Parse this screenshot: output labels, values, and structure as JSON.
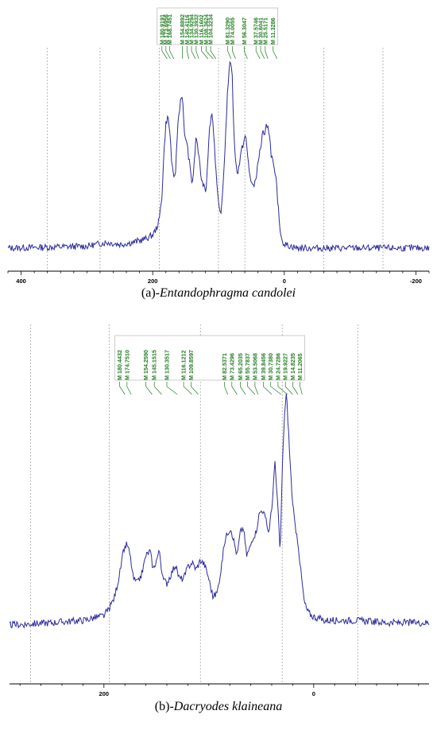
{
  "chart_data": [
    {
      "type": "line",
      "caption_prefix": "(a)-",
      "caption_species": "Entandophragma candolei",
      "x_ticks": [
        400,
        200,
        0,
        -200
      ],
      "xlim": [
        420,
        -220
      ],
      "ylim": [
        0,
        1
      ],
      "grid_x": [
        360,
        280,
        190,
        100,
        60,
        -60,
        -150
      ],
      "peak_labels": [
        "M 180.9191",
        "M 173.6956",
        "M 168.7451",
        "M 154.8892",
        "M 145.4116",
        "M 134.9294",
        "M 130.3932",
        "M 116.1602",
        "M 108.3624",
        "M 104.3234",
        "M 81.3290",
        "M 74.0055",
        "M 56.3047",
        "M 37.5746",
        "M 30.6041",
        "M 25.5171",
        "M 11.3286"
      ],
      "peak_label_ppm": [
        186,
        180,
        174,
        155,
        148,
        141,
        134,
        126,
        119,
        112,
        86,
        79,
        61,
        43,
        36,
        29,
        17
      ],
      "peak_target_ppm": [
        178,
        173,
        168,
        155,
        145,
        135,
        130,
        116,
        108,
        104,
        81,
        74,
        56,
        37,
        30,
        25,
        11
      ],
      "spectrum": {
        "x": [
          420,
          300,
          270,
          250,
          230,
          210,
          200,
          195,
          190,
          186,
          183,
          180,
          177,
          174,
          171,
          168,
          165,
          162,
          158,
          155,
          152,
          149,
          146,
          143,
          140,
          137,
          134,
          131,
          128,
          125,
          122,
          119,
          116,
          113,
          110,
          107,
          104,
          101,
          98,
          95,
          92,
          89,
          86,
          83,
          81,
          79,
          77,
          74,
          71,
          68,
          65,
          62,
          59,
          56,
          53,
          50,
          47,
          44,
          41,
          38,
          35,
          33,
          30,
          28,
          25,
          22,
          20,
          17,
          15,
          12,
          10,
          7,
          4,
          0,
          -20,
          -60,
          -100,
          -150,
          -220
        ],
        "y": [
          0.0,
          0.01,
          0.03,
          0.02,
          0.03,
          0.05,
          0.07,
          0.1,
          0.15,
          0.28,
          0.5,
          0.66,
          0.7,
          0.62,
          0.45,
          0.36,
          0.42,
          0.65,
          0.78,
          0.82,
          0.6,
          0.58,
          0.5,
          0.42,
          0.34,
          0.44,
          0.6,
          0.52,
          0.42,
          0.35,
          0.34,
          0.3,
          0.5,
          0.66,
          0.72,
          0.6,
          0.42,
          0.26,
          0.18,
          0.22,
          0.4,
          0.62,
          0.85,
          0.97,
          1.0,
          0.9,
          0.65,
          0.45,
          0.4,
          0.45,
          0.52,
          0.56,
          0.6,
          0.5,
          0.4,
          0.35,
          0.32,
          0.36,
          0.42,
          0.5,
          0.55,
          0.62,
          0.58,
          0.64,
          0.66,
          0.58,
          0.5,
          0.45,
          0.4,
          0.35,
          0.25,
          0.12,
          0.05,
          0.02,
          0.0,
          0.0,
          0.0,
          0.0,
          0.0
        ]
      }
    },
    {
      "type": "line",
      "caption_prefix": "(b)-",
      "caption_species": "Dacryodes klaineana",
      "x_ticks": [
        200,
        0
      ],
      "xlim": [
        290,
        -110
      ],
      "ylim": [
        0,
        1
      ],
      "grid_x": [
        270,
        195,
        108,
        30,
        -42
      ],
      "peak_labels": [
        "M 180.4432",
        "M 174.7510",
        "M 154.2590",
        "M 145.1515",
        "M 130.3517",
        "M 116.1212",
        "M 109.8597",
        "M 82.5371",
        "M 73.4296",
        "M 65.2035",
        "M 55.7837",
        "M 53.5068",
        "M 39.8456",
        "M 30.7380",
        "M 24.7286",
        "M 19.9227",
        "M 14.8235",
        "M 11.2065"
      ],
      "peak_label_ppm": [
        185,
        178,
        160,
        152,
        140,
        124,
        117,
        85,
        78,
        70,
        63,
        56,
        48,
        41,
        34,
        27,
        20,
        13
      ],
      "peak_target_ppm": [
        180,
        174,
        154,
        145,
        130,
        116,
        110,
        82,
        73,
        65,
        56,
        53,
        40,
        31,
        25,
        20,
        15,
        11
      ],
      "spectrum": {
        "x": [
          290,
          250,
          220,
          200,
          195,
          190,
          185,
          181,
          178,
          175,
          172,
          168,
          164,
          160,
          156,
          153,
          150,
          147,
          144,
          140,
          136,
          132,
          128,
          124,
          120,
          116,
          112,
          108,
          104,
          100,
          96,
          92,
          88,
          85,
          82,
          79,
          76,
          73,
          70,
          67,
          64,
          61,
          58,
          55,
          52,
          49,
          46,
          43,
          40,
          37,
          34,
          32,
          30,
          28,
          26,
          24,
          22,
          20,
          18,
          15,
          12,
          9,
          6,
          2,
          -10,
          -40,
          -70,
          -110
        ],
        "y": [
          0.0,
          0.01,
          0.02,
          0.04,
          0.07,
          0.12,
          0.22,
          0.33,
          0.35,
          0.3,
          0.2,
          0.18,
          0.22,
          0.3,
          0.32,
          0.24,
          0.28,
          0.32,
          0.2,
          0.18,
          0.22,
          0.26,
          0.2,
          0.2,
          0.25,
          0.27,
          0.24,
          0.28,
          0.26,
          0.2,
          0.12,
          0.14,
          0.25,
          0.36,
          0.4,
          0.42,
          0.36,
          0.3,
          0.4,
          0.42,
          0.3,
          0.33,
          0.38,
          0.4,
          0.48,
          0.5,
          0.46,
          0.4,
          0.5,
          0.7,
          0.5,
          0.3,
          0.66,
          0.9,
          1.0,
          0.84,
          0.66,
          0.52,
          0.44,
          0.36,
          0.22,
          0.1,
          0.06,
          0.04,
          0.02,
          0.02,
          0.01,
          0.01
        ]
      }
    }
  ]
}
